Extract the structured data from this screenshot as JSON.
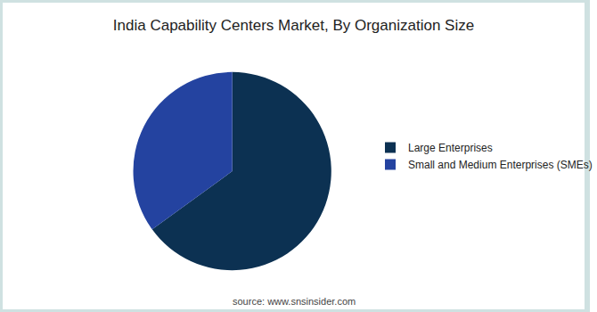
{
  "chart_data": {
    "type": "pie",
    "title": "India Capability Centers Market, By Organization Size",
    "categories": [
      "Large Enterprises",
      "Small and Medium Enterprises (SMEs)"
    ],
    "values": [
      65,
      35
    ],
    "colors": [
      "#0c3152",
      "#2443a0"
    ],
    "legend": "right",
    "data_labels": false,
    "annotations": [
      "source: www.snsinsider.com"
    ]
  }
}
